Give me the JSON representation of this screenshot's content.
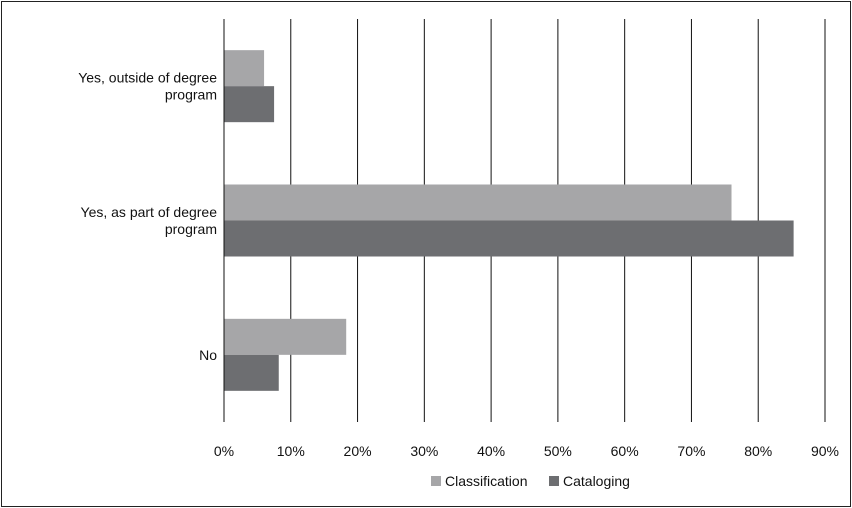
{
  "chart_data": {
    "type": "bar",
    "orientation": "horizontal",
    "categories": [
      "Yes, outside of degree program",
      "Yes, as part of degree program",
      "No"
    ],
    "category_label_lines": [
      [
        "Yes, outside of degree",
        "program"
      ],
      [
        "Yes, as part of degree",
        "program"
      ],
      [
        "No"
      ]
    ],
    "series": [
      {
        "name": "Classification",
        "values": [
          6,
          76,
          18.3
        ],
        "color": "#a6a6a8"
      },
      {
        "name": "Cataloging",
        "values": [
          7.5,
          85.3,
          8.2
        ],
        "color": "#6d6e71"
      }
    ],
    "xlim": [
      0,
      90
    ],
    "x_ticks": [
      0,
      10,
      20,
      30,
      40,
      50,
      60,
      70,
      80,
      90
    ],
    "x_tick_labels": [
      "0%",
      "10%",
      "20%",
      "30%",
      "40%",
      "50%",
      "60%",
      "70%",
      "80%",
      "90%"
    ],
    "grid": "vertical",
    "legend_position": "bottom",
    "title": "",
    "xlabel": "",
    "ylabel": ""
  }
}
